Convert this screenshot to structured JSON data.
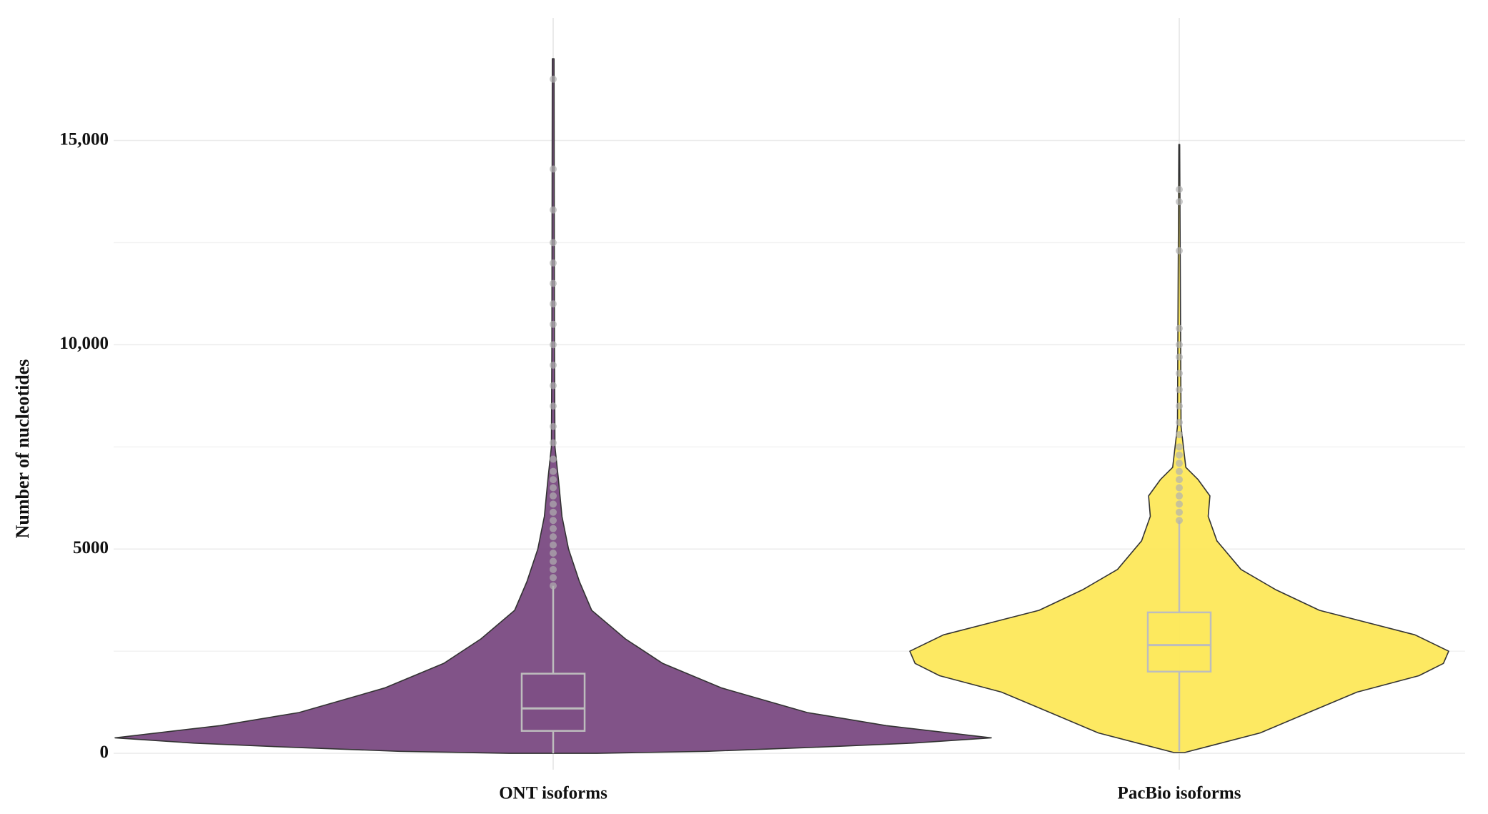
{
  "chart_data": {
    "type": "violin",
    "ylabel": "Number of nucleotides",
    "categories": [
      "ONT isoforms",
      "PacBio isoforms"
    ],
    "ylim": [
      -400,
      18000
    ],
    "yticks": [
      0,
      5000,
      {
        "value": 10000,
        "label": "10,000"
      },
      {
        "value": 15000,
        "label": "15,000"
      }
    ],
    "minor_yticks": [
      2500,
      7500,
      12500
    ],
    "grid": true,
    "series": [
      {
        "color": "#7a4a82",
        "density_y": [
          0,
          50,
          150,
          250,
          380,
          680,
          1000,
          1600,
          2200,
          2800,
          3500,
          4200,
          5000,
          5800,
          6700,
          7500,
          10000,
          17000
        ],
        "density_width": [
          0.1,
          0.35,
          0.6,
          0.82,
          1.0,
          0.76,
          0.58,
          0.385,
          0.25,
          0.165,
          0.088,
          0.06,
          0.035,
          0.02,
          0.012,
          0.004,
          0.003,
          0.002
        ],
        "box": {
          "min": 0,
          "q1": 550,
          "median": 1100,
          "q3": 1950,
          "max": 4100
        },
        "outliers": [
          4100,
          4300,
          4500,
          4700,
          4900,
          5100,
          5300,
          5500,
          5700,
          5900,
          6100,
          6300,
          6500,
          6700,
          6900,
          7200,
          7600,
          8000,
          8500,
          9000,
          9500,
          10000,
          10500,
          11000,
          11500,
          12000,
          12500,
          13300,
          14300,
          16500
        ]
      },
      {
        "color": "#fde85a",
        "density_y": [
          20,
          200,
          500,
          1000,
          1500,
          1900,
          2200,
          2500,
          2900,
          3500,
          4000,
          4500,
          5200,
          5800,
          6300,
          6700,
          7000,
          8000,
          14900
        ],
        "density_width": [
          0.012,
          0.077,
          0.185,
          0.295,
          0.406,
          0.547,
          0.603,
          0.615,
          0.538,
          0.32,
          0.221,
          0.141,
          0.086,
          0.066,
          0.07,
          0.043,
          0.015,
          0.004,
          0.001
        ],
        "box": {
          "min": 50,
          "q1": 2000,
          "median": 2650,
          "q3": 3450,
          "max": 5700
        },
        "outliers": [
          5700,
          5900,
          6100,
          6300,
          6500,
          6700,
          6900,
          7100,
          7300,
          7500,
          7800,
          8100,
          8500,
          8900,
          9300,
          9700,
          10000,
          10400,
          12300,
          13500,
          13800
        ]
      }
    ]
  }
}
